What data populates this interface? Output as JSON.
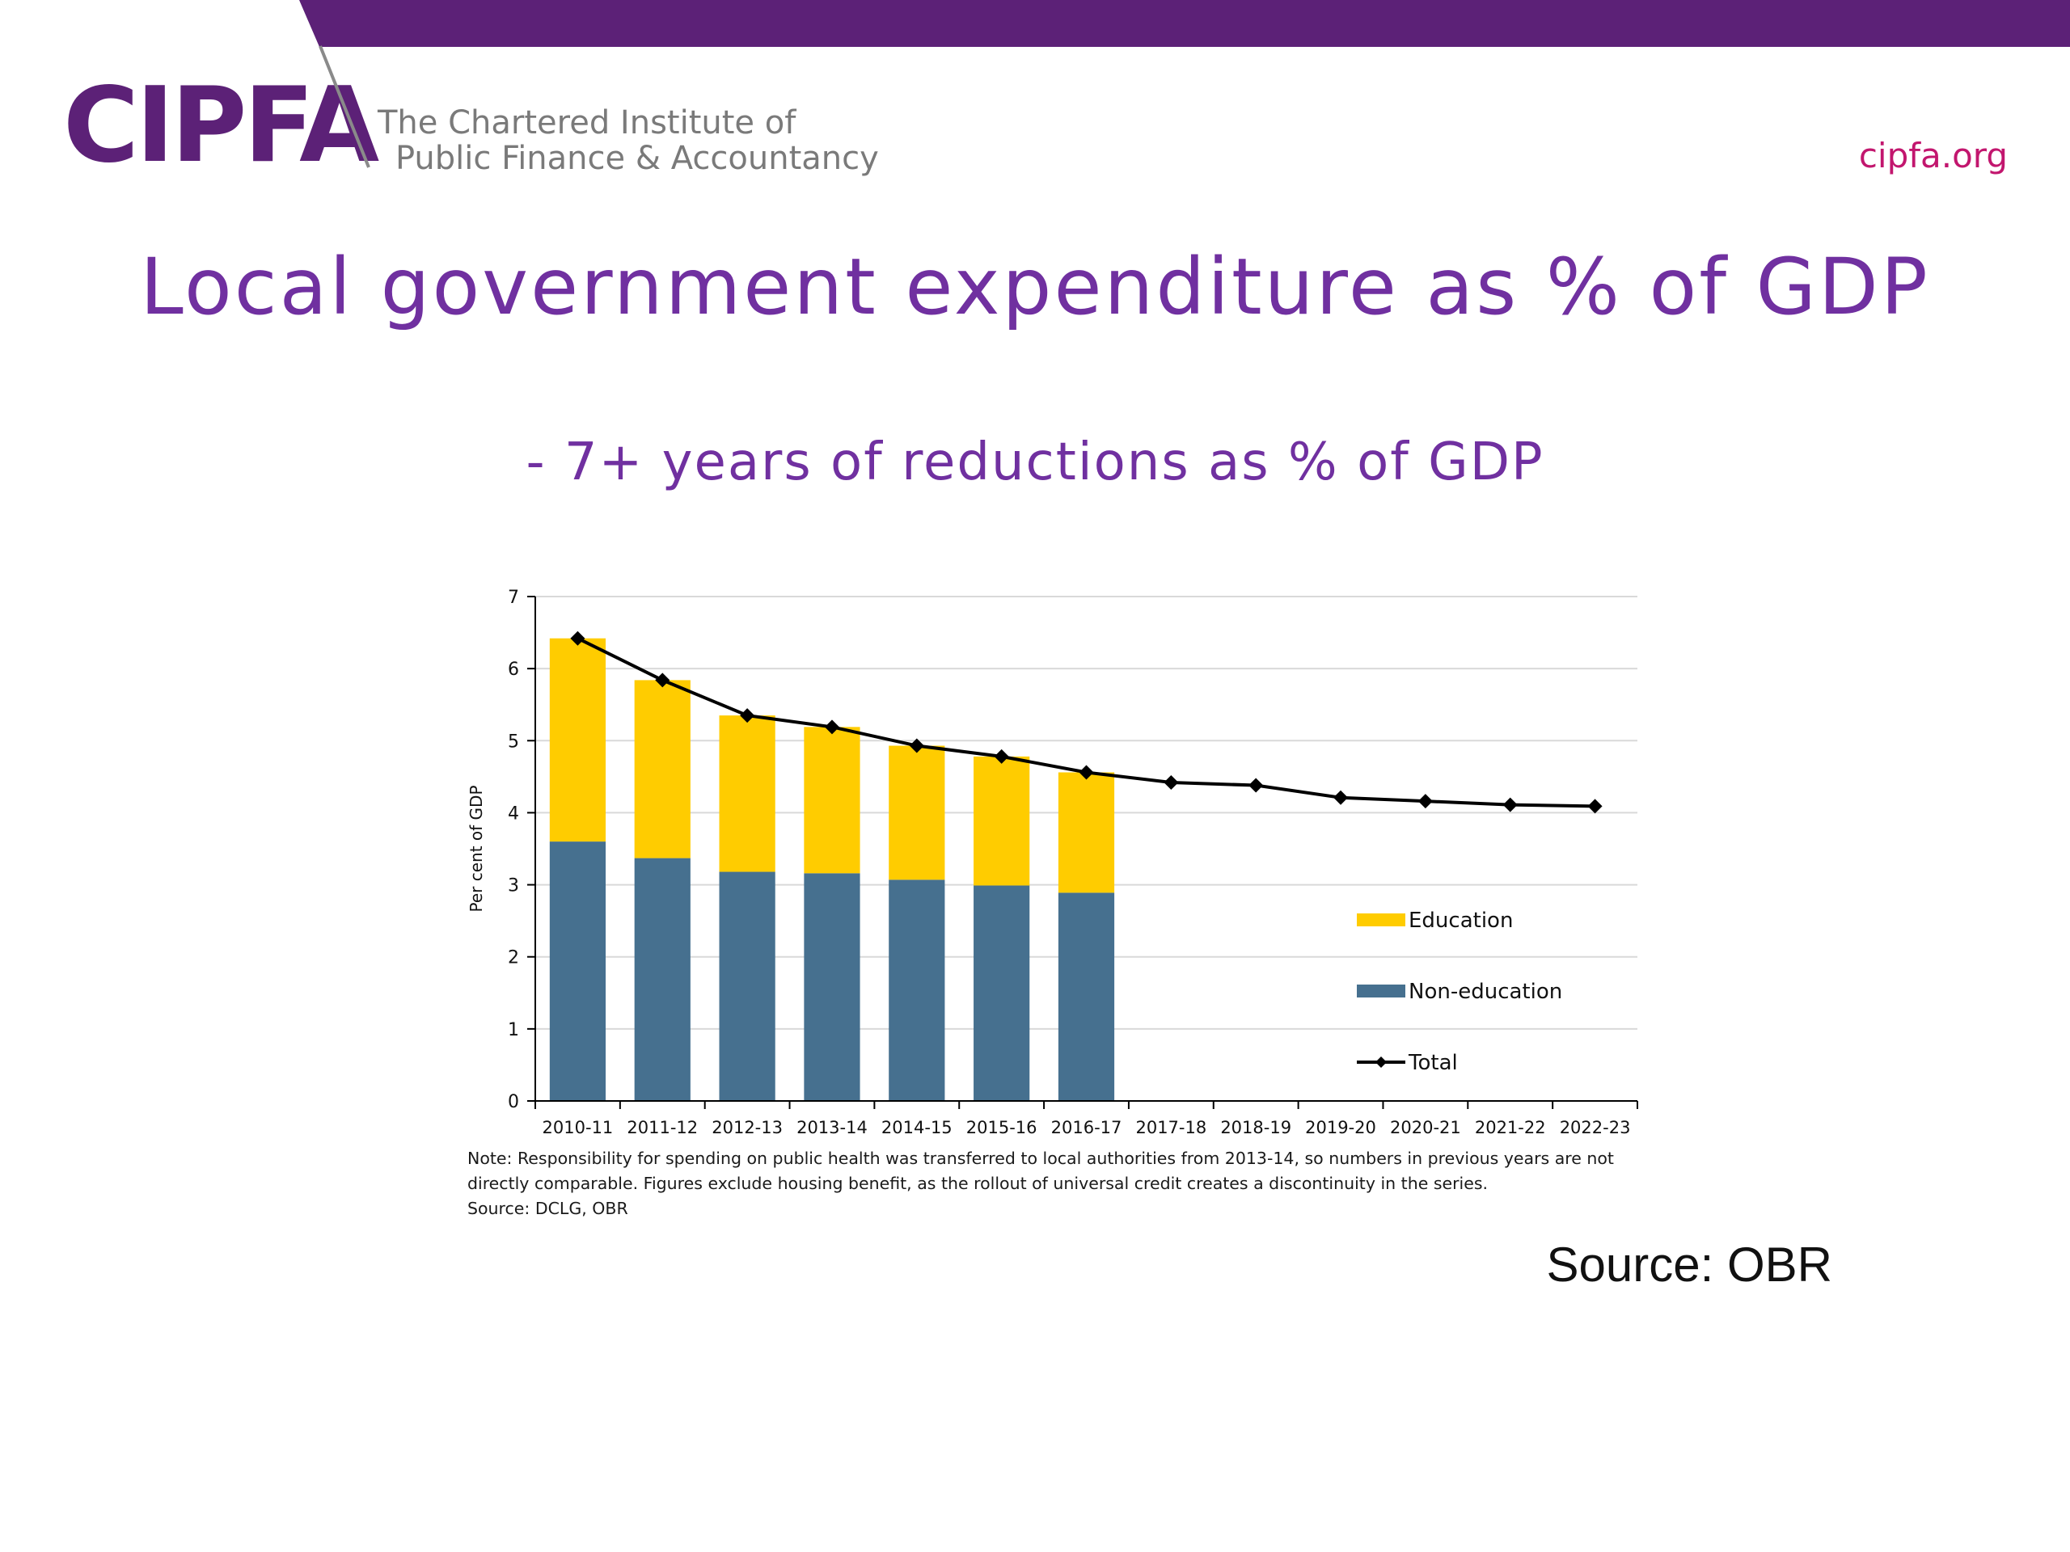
{
  "brand": {
    "logo": "CIPFA",
    "tagline_line1": "The Chartered Institute of",
    "tagline_line2": "Public Finance & Accountancy",
    "url": "cipfa.org",
    "colors": {
      "purple": "#5c2177",
      "magenta": "#c2166e",
      "title_purple": "#7030a0"
    }
  },
  "slide": {
    "title": "Local government expenditure as % of GDP",
    "subtitle": "- 7+ years of reductions as % of GDP",
    "source": "Source: OBR"
  },
  "chart_data": {
    "type": "bar",
    "stacked": true,
    "categories": [
      "2010-11",
      "2011-12",
      "2012-13",
      "2013-14",
      "2014-15",
      "2015-16",
      "2016-17",
      "2017-18",
      "2018-19",
      "2019-20",
      "2020-21",
      "2021-22",
      "2022-23"
    ],
    "series": [
      {
        "name": "Non-education",
        "kind": "bar",
        "color": "#46708f",
        "values": [
          3.6,
          3.37,
          3.18,
          3.16,
          3.07,
          2.99,
          2.89,
          null,
          null,
          null,
          null,
          null,
          null
        ]
      },
      {
        "name": "Education",
        "kind": "bar",
        "color": "#ffcc00",
        "values": [
          2.82,
          2.47,
          2.17,
          2.03,
          1.86,
          1.79,
          1.67,
          null,
          null,
          null,
          null,
          null,
          null
        ]
      },
      {
        "name": "Total",
        "kind": "line",
        "color": "#000000",
        "values": [
          6.42,
          5.84,
          5.35,
          5.19,
          4.93,
          4.78,
          4.56,
          4.42,
          4.38,
          4.21,
          4.16,
          4.11,
          4.09
        ]
      }
    ],
    "ylabel": "Per cent of GDP",
    "xlabel": "",
    "ylim": [
      0,
      7
    ],
    "yticks": [
      0,
      1,
      2,
      3,
      4,
      5,
      6,
      7
    ],
    "grid": true,
    "legend_position": "right",
    "note": "Note: Responsibility for spending on public health was transferred to local authorities from 2013-14, so numbers in previous years are not directly comparable. Figures exclude housing benefit, as the rollout of universal credit creates a discontinuity in the series.",
    "source": "Source: DCLG, OBR"
  }
}
